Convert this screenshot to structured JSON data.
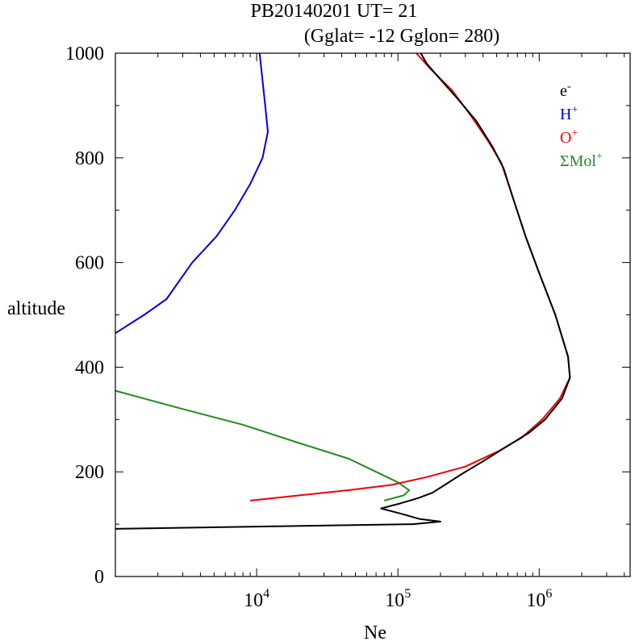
{
  "chart_data": {
    "type": "line",
    "title": "PB20140201   UT=  21",
    "subtitle": "(Gglat= -12   Gglon=  280)",
    "xlabel": "Ne",
    "ylabel": "altitude",
    "xscale": "log",
    "xlim": [
      1000,
      4400000
    ],
    "ylim": [
      0,
      1000
    ],
    "grid": false,
    "legend_position": "top-right",
    "x_ticks": [
      {
        "base": "10",
        "exp": "4",
        "value": 10000
      },
      {
        "base": "10",
        "exp": "5",
        "value": 100000
      },
      {
        "base": "10",
        "exp": "6",
        "value": 1000000
      }
    ],
    "y_ticks": [
      "0",
      "200",
      "400",
      "600",
      "800",
      "1000"
    ],
    "series": [
      {
        "name": "e-",
        "label_base": "e",
        "label_sup": "-",
        "color": "#000000",
        "points": [
          [
            1000,
            91
          ],
          [
            128000,
            100
          ],
          [
            200000,
            105
          ],
          [
            142000,
            110
          ],
          [
            105000,
            120
          ],
          [
            76000,
            130
          ],
          [
            105000,
            140
          ],
          [
            140000,
            150
          ],
          [
            175000,
            160
          ],
          [
            215000,
            175
          ],
          [
            280000,
            195
          ],
          [
            400000,
            220
          ],
          [
            600000,
            250
          ],
          [
            850000,
            275
          ],
          [
            1100000,
            300
          ],
          [
            1450000,
            340
          ],
          [
            1650000,
            380
          ],
          [
            1600000,
            420
          ],
          [
            1300000,
            500
          ],
          [
            1000000,
            580
          ],
          [
            800000,
            650
          ],
          [
            640000,
            730
          ],
          [
            560000,
            780
          ],
          [
            470000,
            820
          ],
          [
            360000,
            870
          ],
          [
            270000,
            910
          ],
          [
            200000,
            950
          ],
          [
            160000,
            980
          ],
          [
            145000,
            1000
          ]
        ]
      },
      {
        "name": "H+",
        "label_base": "H",
        "label_sup": "+",
        "color": "#0000dd",
        "points": [
          [
            1000,
            465
          ],
          [
            1600,
            500
          ],
          [
            2300,
            530
          ],
          [
            3500,
            600
          ],
          [
            5200,
            650
          ],
          [
            7000,
            700
          ],
          [
            9000,
            750
          ],
          [
            11000,
            800
          ],
          [
            12000,
            850
          ],
          [
            11500,
            900
          ],
          [
            10500,
            1000
          ]
        ]
      },
      {
        "name": "O+",
        "label_base": "O",
        "label_sup": "+",
        "color": "#ee0000",
        "points": [
          [
            9000,
            145
          ],
          [
            20000,
            155
          ],
          [
            45000,
            165
          ],
          [
            90000,
            175
          ],
          [
            160000,
            190
          ],
          [
            300000,
            210
          ],
          [
            520000,
            240
          ],
          [
            750000,
            265
          ],
          [
            1050000,
            300
          ],
          [
            1400000,
            340
          ],
          [
            1650000,
            380
          ],
          [
            1600000,
            420
          ],
          [
            1300000,
            500
          ],
          [
            1000000,
            580
          ],
          [
            800000,
            650
          ],
          [
            640000,
            730
          ],
          [
            540000,
            790
          ],
          [
            440000,
            830
          ],
          [
            330000,
            880
          ],
          [
            240000,
            930
          ],
          [
            170000,
            970
          ],
          [
            135000,
            1000
          ]
        ]
      },
      {
        "name": "ΣMol+",
        "label_base": "ΣMol",
        "label_sup": "+",
        "color": "#228b22",
        "points": [
          [
            1000,
            355
          ],
          [
            3000,
            320
          ],
          [
            8000,
            290
          ],
          [
            20000,
            255
          ],
          [
            45000,
            225
          ],
          [
            70000,
            200
          ],
          [
            100000,
            180
          ],
          [
            120000,
            165
          ],
          [
            110000,
            155
          ],
          [
            80000,
            145
          ]
        ]
      }
    ]
  }
}
